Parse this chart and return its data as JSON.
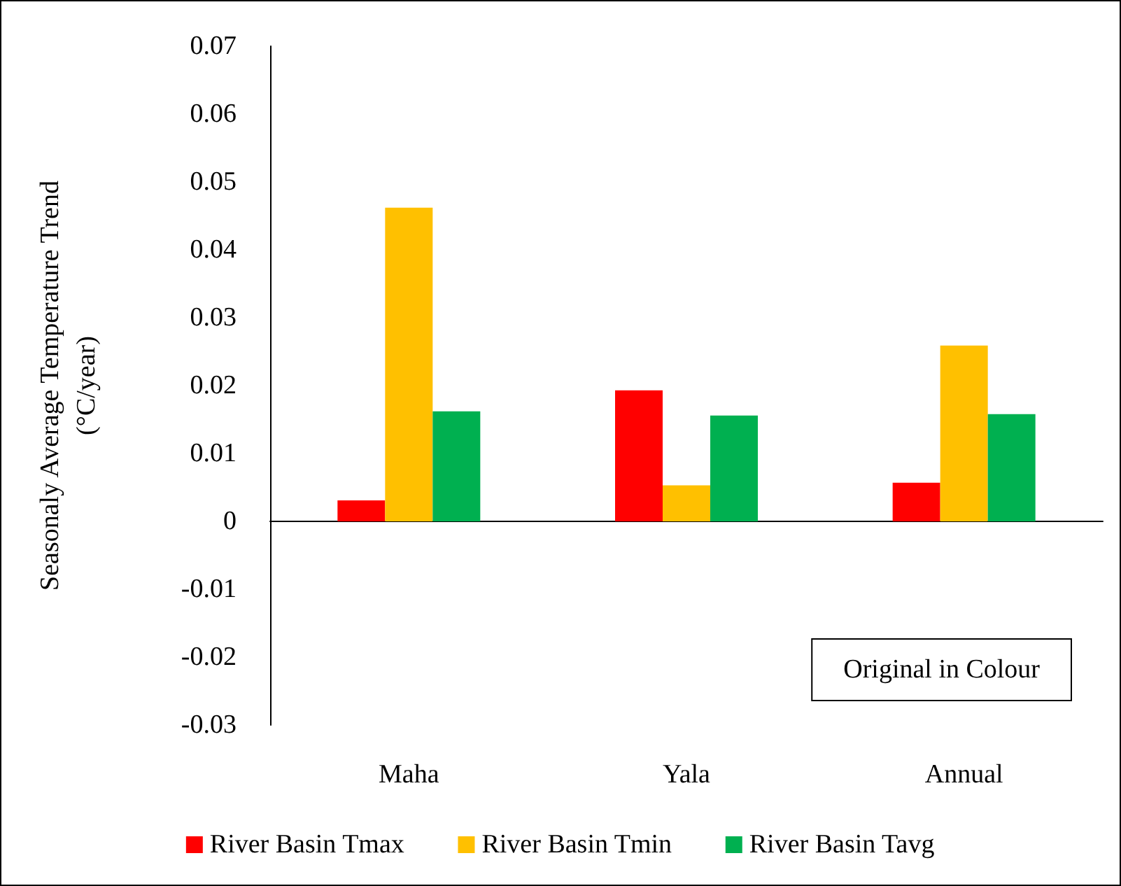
{
  "chart_data": {
    "type": "bar",
    "ylabel": "Seasonaly Average Temperature Trend\n(°C/year)",
    "categories": [
      "Maha",
      "Yala",
      "Annual"
    ],
    "series": [
      {
        "name": "River Basin Tmax",
        "color": "#ff0000",
        "values": [
          0.0031,
          0.0193,
          0.0057
        ]
      },
      {
        "name": "River Basin Tmin",
        "color": "#ffc000",
        "values": [
          0.0462,
          0.0053,
          0.0259
        ]
      },
      {
        "name": "River Basin Tavg",
        "color": "#00b050",
        "values": [
          0.0162,
          0.0156,
          0.0158
        ]
      }
    ],
    "ylim": [
      -0.03,
      0.07
    ],
    "yticks": [
      -0.03,
      -0.02,
      -0.01,
      0,
      0.01,
      0.02,
      0.03,
      0.04,
      0.05,
      0.06,
      0.07
    ],
    "annotations": [
      "Original in Colour"
    ],
    "legend": "bottom"
  }
}
